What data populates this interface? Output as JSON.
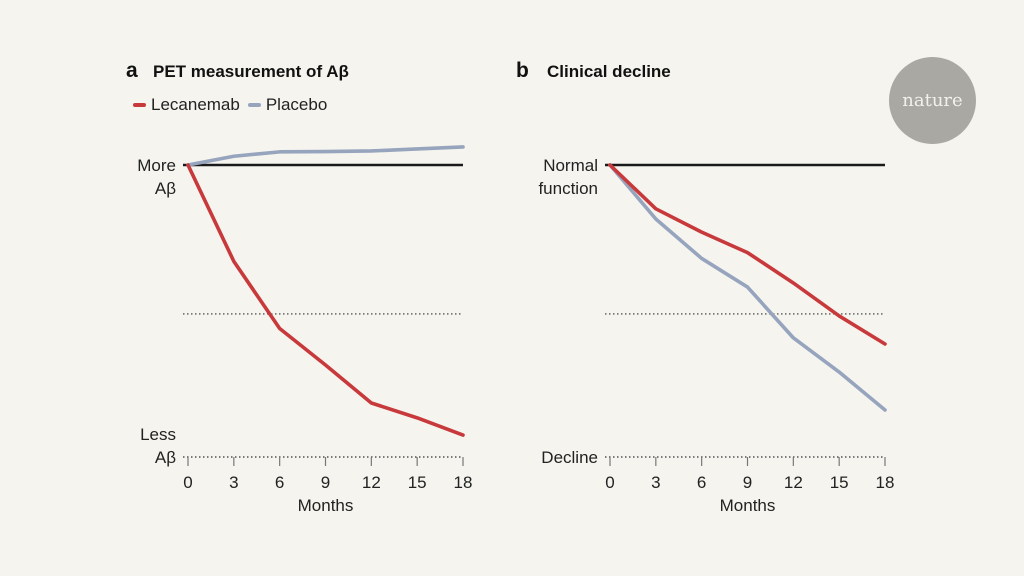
{
  "logo": {
    "text": "nature"
  },
  "legend": [
    {
      "label": "Lecanemab",
      "color": "#c8393b"
    },
    {
      "label": "Placebo",
      "color": "#97a4bd"
    }
  ],
  "chart_data": [
    {
      "type": "line",
      "panel": "a",
      "title": "PET measurement of Aβ",
      "xlabel": "Months",
      "ylabel_top": [
        "More",
        "Aβ"
      ],
      "ylabel_bottom": [
        "Less",
        "Aβ"
      ],
      "x": [
        0,
        3,
        6,
        9,
        12,
        15,
        18
      ],
      "xticks": [
        "0",
        "3",
        "6",
        "9",
        "12",
        "15",
        "18"
      ],
      "ylim": [
        0,
        100
      ],
      "y_units": "relative level (100 = baseline 'More Aβ', 0 = 'Less Aβ')",
      "reference_lines": [
        {
          "y": 100,
          "style": "solid"
        },
        {
          "y": 49,
          "style": "dotted"
        },
        {
          "y": 0,
          "style": "dotted"
        }
      ],
      "series": [
        {
          "name": "Lecanemab",
          "color": "#c8393b",
          "values": [
            100,
            67,
            44,
            31.5,
            18.5,
            13.4,
            7.5
          ]
        },
        {
          "name": "Placebo",
          "color": "#97a4bd",
          "values": [
            100,
            103,
            104.5,
            104.6,
            104.8,
            105.5,
            106.2
          ]
        }
      ]
    },
    {
      "type": "line",
      "panel": "b",
      "title": "Clinical decline",
      "xlabel": "Months",
      "ylabel_top": [
        "Normal",
        "function"
      ],
      "ylabel_bottom": [
        "Decline"
      ],
      "x": [
        0,
        3,
        6,
        9,
        12,
        15,
        18
      ],
      "xticks": [
        "0",
        "3",
        "6",
        "9",
        "12",
        "15",
        "18"
      ],
      "ylim": [
        0,
        100
      ],
      "y_units": "relative level (100 = 'Normal function', 0 = 'Decline')",
      "reference_lines": [
        {
          "y": 100,
          "style": "solid"
        },
        {
          "y": 49,
          "style": "dotted"
        },
        {
          "y": 0,
          "style": "dotted"
        }
      ],
      "series": [
        {
          "name": "Lecanemab",
          "color": "#c8393b",
          "values": [
            100,
            85,
            77,
            70,
            59.6,
            48.3,
            38.7
          ]
        },
        {
          "name": "Placebo",
          "color": "#97a4bd",
          "values": [
            100,
            81.5,
            68,
            58.2,
            40.8,
            29.1,
            16.1
          ]
        }
      ]
    }
  ]
}
